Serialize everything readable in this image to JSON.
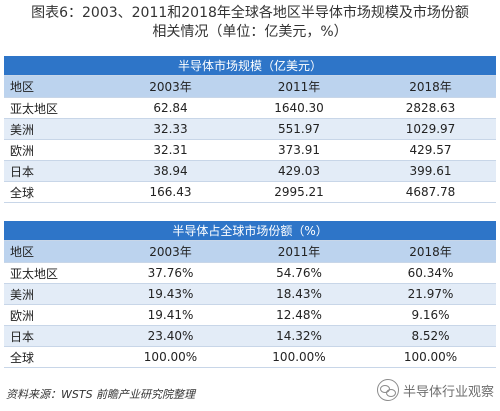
{
  "title": {
    "line1": "图表6：2003、2011和2018年全球各地区半导体市场规模及市场份额",
    "line2": "相关情况（单位：亿美元，%）"
  },
  "table1": {
    "section_title": "半导体市场规模（亿美元）",
    "headers": [
      "地区",
      "2003年",
      "2011年",
      "2018年"
    ],
    "rows": [
      [
        "亚太地区",
        "62.84",
        "1640.30",
        "2828.63"
      ],
      [
        "美洲",
        "32.33",
        "551.97",
        "1029.97"
      ],
      [
        "欧洲",
        "32.31",
        "373.91",
        "429.57"
      ],
      [
        "日本",
        "38.94",
        "429.03",
        "399.61"
      ],
      [
        "全球",
        "166.43",
        "2995.21",
        "4687.78"
      ]
    ]
  },
  "table2": {
    "section_title": "半导体占全球市场份额（%）",
    "headers": [
      "地区",
      "2003年",
      "2011年",
      "2018年"
    ],
    "rows": [
      [
        "亚太地区",
        "37.76%",
        "54.76%",
        "60.34%"
      ],
      [
        "美洲",
        "19.43%",
        "18.43%",
        "21.97%"
      ],
      [
        "欧洲",
        "19.41%",
        "12.48%",
        "9.16%"
      ],
      [
        "日本",
        "23.40%",
        "14.32%",
        "8.52%"
      ],
      [
        "全球",
        "100.00%",
        "100.00%",
        "100.00%"
      ]
    ]
  },
  "source": "资料来源：WSTS 前瞻产业研究院整理",
  "watermark": "半导体行业观察"
}
